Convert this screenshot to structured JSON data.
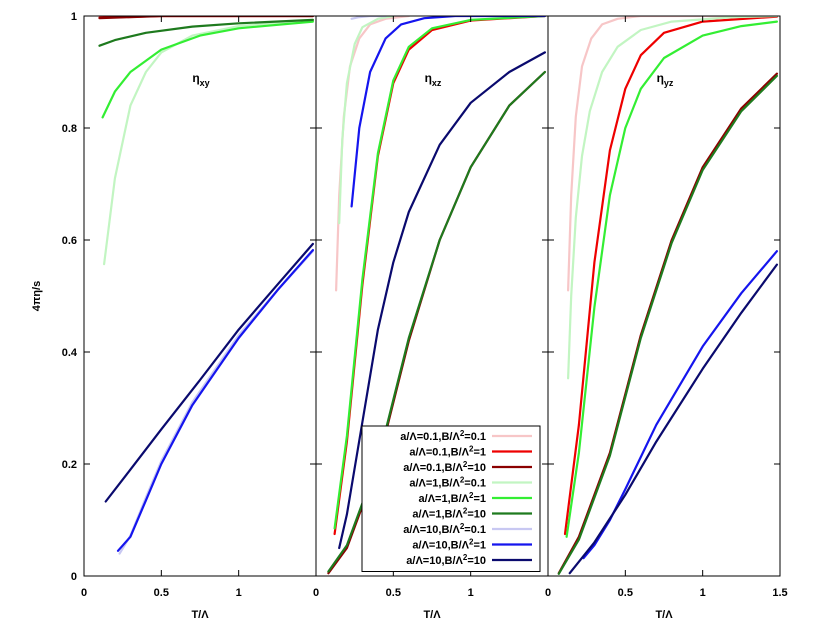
{
  "chart_data": {
    "type": "line",
    "ylabel": "4πη/s",
    "xlabel": "T/Λ",
    "ylim": [
      0,
      1
    ],
    "xlim": [
      0,
      1.5
    ],
    "y_ticks": [
      0,
      0.2,
      0.4,
      0.6,
      0.8,
      1
    ],
    "y_tick_labels": [
      "0",
      "0.2",
      "0.4",
      "0.6",
      "0.8",
      "1"
    ],
    "x_ticks": [
      0,
      0.5,
      1
    ],
    "x_tick_labels": [
      "0",
      "0.5",
      "1"
    ],
    "x_ticks_last": [
      0,
      0.5,
      1,
      1.5
    ],
    "x_tick_labels_last": [
      "0",
      "0.5",
      "1",
      "1.5"
    ],
    "legend_placement": "bottom-center",
    "series_styles": [
      {
        "key": "s1",
        "label_parts": [
          "a/Λ=0.1,B/Λ",
          "2",
          "=0.1"
        ],
        "color": "#f7c6c7"
      },
      {
        "key": "s2",
        "label_parts": [
          "a/Λ=0.1,B/Λ",
          "2",
          "=1"
        ],
        "color": "#ee0000"
      },
      {
        "key": "s3",
        "label_parts": [
          "a/Λ=0.1,B/Λ",
          "2",
          "=10"
        ],
        "color": "#8b0000"
      },
      {
        "key": "s4",
        "label_parts": [
          "a/Λ=1,B/Λ",
          "2",
          "=0.1"
        ],
        "color": "#c2f5c2"
      },
      {
        "key": "s5",
        "label_parts": [
          "a/Λ=1,B/Λ",
          "2",
          "=1"
        ],
        "color": "#33ee33"
      },
      {
        "key": "s6",
        "label_parts": [
          "a/Λ=1,B/Λ",
          "2",
          "=10"
        ],
        "color": "#1e7a1e"
      },
      {
        "key": "s7",
        "label_parts": [
          "a/Λ=10,B/Λ",
          "2",
          "=0.1"
        ],
        "color": "#c8c8f2"
      },
      {
        "key": "s8",
        "label_parts": [
          "a/Λ=10,B/Λ",
          "2",
          "=1"
        ],
        "color": "#1515ee"
      },
      {
        "key": "s9",
        "label_parts": [
          "a/Λ=10,B/Λ",
          "2",
          "=10"
        ],
        "color": "#0a0a6e"
      }
    ],
    "panels": [
      {
        "label_main": "η",
        "label_sub": "xy",
        "series": [
          {
            "key": "s1",
            "points": [
              [
                0.1,
                0.998
              ],
              [
                0.5,
                1
              ],
              [
                1,
                1
              ],
              [
                1.48,
                1
              ]
            ]
          },
          {
            "key": "s2",
            "points": [
              [
                0.1,
                0.997
              ],
              [
                0.5,
                1
              ],
              [
                1,
                1
              ],
              [
                1.48,
                1
              ]
            ]
          },
          {
            "key": "s3",
            "points": [
              [
                0.1,
                0.996
              ],
              [
                0.5,
                1
              ],
              [
                1,
                1
              ],
              [
                1.48,
                1
              ]
            ]
          },
          {
            "key": "s4",
            "points": [
              [
                0.13,
                0.557
              ],
              [
                0.2,
                0.71
              ],
              [
                0.3,
                0.84
              ],
              [
                0.4,
                0.9
              ],
              [
                0.5,
                0.935
              ],
              [
                0.7,
                0.965
              ],
              [
                1,
                0.982
              ],
              [
                1.48,
                0.993
              ]
            ]
          },
          {
            "key": "s5",
            "points": [
              [
                0.12,
                0.819
              ],
              [
                0.2,
                0.865
              ],
              [
                0.3,
                0.9
              ],
              [
                0.5,
                0.94
              ],
              [
                0.75,
                0.965
              ],
              [
                1,
                0.978
              ],
              [
                1.48,
                0.99
              ]
            ]
          },
          {
            "key": "s6",
            "points": [
              [
                0.1,
                0.947
              ],
              [
                0.2,
                0.957
              ],
              [
                0.4,
                0.97
              ],
              [
                0.7,
                0.981
              ],
              [
                1,
                0.987
              ],
              [
                1.48,
                0.993
              ]
            ]
          },
          {
            "key": "s7",
            "points": [
              [
                0.23,
                0.04
              ],
              [
                0.3,
                0.072
              ],
              [
                0.4,
                0.14
              ],
              [
                0.5,
                0.205
              ],
              [
                0.7,
                0.31
              ],
              [
                1,
                0.43
              ],
              [
                1.25,
                0.51
              ],
              [
                1.48,
                0.58
              ]
            ]
          },
          {
            "key": "s8",
            "points": [
              [
                0.22,
                0.045
              ],
              [
                0.3,
                0.07
              ],
              [
                0.4,
                0.135
              ],
              [
                0.5,
                0.2
              ],
              [
                0.7,
                0.305
              ],
              [
                1,
                0.425
              ],
              [
                1.25,
                0.51
              ],
              [
                1.48,
                0.582
              ]
            ]
          },
          {
            "key": "s9",
            "points": [
              [
                0.14,
                0.133
              ],
              [
                0.3,
                0.19
              ],
              [
                0.5,
                0.262
              ],
              [
                0.75,
                0.35
              ],
              [
                1,
                0.44
              ],
              [
                1.25,
                0.52
              ],
              [
                1.48,
                0.593
              ]
            ]
          }
        ]
      },
      {
        "label_main": "η",
        "label_sub": "xz",
        "series": [
          {
            "key": "s1",
            "points": [
              [
                0.13,
                0.51
              ],
              [
                0.15,
                0.68
              ],
              [
                0.18,
                0.82
              ],
              [
                0.22,
                0.91
              ],
              [
                0.28,
                0.96
              ],
              [
                0.35,
                0.985
              ],
              [
                0.45,
                0.995
              ],
              [
                0.6,
                1
              ]
            ]
          },
          {
            "key": "s2",
            "points": [
              [
                0.12,
                0.075
              ],
              [
                0.2,
                0.24
              ],
              [
                0.3,
                0.52
              ],
              [
                0.4,
                0.75
              ],
              [
                0.5,
                0.88
              ],
              [
                0.6,
                0.94
              ],
              [
                0.75,
                0.975
              ],
              [
                1,
                0.992
              ],
              [
                1.48,
                1
              ]
            ]
          },
          {
            "key": "s3",
            "points": [
              [
                0.08,
                0.005
              ],
              [
                0.2,
                0.05
              ],
              [
                0.4,
                0.2
              ],
              [
                0.6,
                0.42
              ],
              [
                0.8,
                0.6
              ],
              [
                1,
                0.73
              ],
              [
                1.25,
                0.84
              ],
              [
                1.48,
                0.9
              ]
            ]
          },
          {
            "key": "s4",
            "points": [
              [
                0.15,
                0.63
              ],
              [
                0.17,
                0.78
              ],
              [
                0.2,
                0.88
              ],
              [
                0.25,
                0.95
              ],
              [
                0.3,
                0.98
              ],
              [
                0.4,
                0.995
              ],
              [
                0.5,
                1
              ]
            ]
          },
          {
            "key": "s5",
            "points": [
              [
                0.12,
                0.085
              ],
              [
                0.2,
                0.25
              ],
              [
                0.3,
                0.53
              ],
              [
                0.4,
                0.755
              ],
              [
                0.5,
                0.885
              ],
              [
                0.6,
                0.945
              ],
              [
                0.75,
                0.978
              ],
              [
                1,
                0.993
              ],
              [
                1.48,
                1
              ]
            ]
          },
          {
            "key": "s6",
            "points": [
              [
                0.08,
                0.008
              ],
              [
                0.2,
                0.055
              ],
              [
                0.4,
                0.205
              ],
              [
                0.6,
                0.425
              ],
              [
                0.8,
                0.6
              ],
              [
                1,
                0.73
              ],
              [
                1.25,
                0.84
              ],
              [
                1.48,
                0.9
              ]
            ]
          },
          {
            "key": "s7",
            "points": [
              [
                0.23,
                0.995
              ],
              [
                0.28,
                0.998
              ],
              [
                0.35,
                1
              ],
              [
                0.45,
                1
              ]
            ]
          },
          {
            "key": "s8",
            "points": [
              [
                0.23,
                0.66
              ],
              [
                0.28,
                0.8
              ],
              [
                0.35,
                0.9
              ],
              [
                0.45,
                0.96
              ],
              [
                0.55,
                0.985
              ],
              [
                0.7,
                0.996
              ],
              [
                0.9,
                1
              ],
              [
                1.48,
                1
              ]
            ]
          },
          {
            "key": "s9",
            "points": [
              [
                0.15,
                0.05
              ],
              [
                0.2,
                0.11
              ],
              [
                0.3,
                0.275
              ],
              [
                0.4,
                0.44
              ],
              [
                0.5,
                0.56
              ],
              [
                0.6,
                0.65
              ],
              [
                0.8,
                0.77
              ],
              [
                1,
                0.845
              ],
              [
                1.25,
                0.9
              ],
              [
                1.48,
                0.935
              ]
            ]
          }
        ]
      },
      {
        "label_main": "η",
        "label_sub": "yz",
        "series": [
          {
            "key": "s1",
            "points": [
              [
                0.13,
                0.51
              ],
              [
                0.15,
                0.68
              ],
              [
                0.18,
                0.82
              ],
              [
                0.22,
                0.91
              ],
              [
                0.28,
                0.96
              ],
              [
                0.35,
                0.985
              ],
              [
                0.45,
                0.995
              ],
              [
                0.6,
                1
              ],
              [
                1,
                1
              ],
              [
                1.48,
                1
              ]
            ]
          },
          {
            "key": "s2",
            "points": [
              [
                0.11,
                0.075
              ],
              [
                0.2,
                0.27
              ],
              [
                0.3,
                0.56
              ],
              [
                0.4,
                0.76
              ],
              [
                0.5,
                0.87
              ],
              [
                0.6,
                0.93
              ],
              [
                0.75,
                0.97
              ],
              [
                1,
                0.99
              ],
              [
                1.48,
                0.999
              ]
            ]
          },
          {
            "key": "s3",
            "points": [
              [
                0.07,
                0.005
              ],
              [
                0.2,
                0.07
              ],
              [
                0.4,
                0.22
              ],
              [
                0.6,
                0.43
              ],
              [
                0.8,
                0.6
              ],
              [
                1,
                0.73
              ],
              [
                1.25,
                0.835
              ],
              [
                1.48,
                0.897
              ]
            ]
          },
          {
            "key": "s4",
            "points": [
              [
                0.13,
                0.353
              ],
              [
                0.15,
                0.5
              ],
              [
                0.18,
                0.64
              ],
              [
                0.22,
                0.75
              ],
              [
                0.27,
                0.83
              ],
              [
                0.35,
                0.9
              ],
              [
                0.45,
                0.945
              ],
              [
                0.6,
                0.975
              ],
              [
                0.8,
                0.99
              ],
              [
                1.2,
                0.998
              ],
              [
                1.48,
                1
              ]
            ]
          },
          {
            "key": "s5",
            "points": [
              [
                0.12,
                0.07
              ],
              [
                0.2,
                0.22
              ],
              [
                0.3,
                0.48
              ],
              [
                0.4,
                0.68
              ],
              [
                0.5,
                0.8
              ],
              [
                0.6,
                0.87
              ],
              [
                0.75,
                0.925
              ],
              [
                1,
                0.965
              ],
              [
                1.25,
                0.982
              ],
              [
                1.48,
                0.99
              ]
            ]
          },
          {
            "key": "s6",
            "points": [
              [
                0.07,
                0.004
              ],
              [
                0.2,
                0.065
              ],
              [
                0.4,
                0.215
              ],
              [
                0.6,
                0.425
              ],
              [
                0.8,
                0.595
              ],
              [
                1,
                0.725
              ],
              [
                1.25,
                0.83
              ],
              [
                1.48,
                0.893
              ]
            ]
          },
          {
            "key": "s8",
            "points": [
              [
                0.23,
                0.032
              ],
              [
                0.3,
                0.055
              ],
              [
                0.4,
                0.1
              ],
              [
                0.5,
                0.155
              ],
              [
                0.7,
                0.27
              ],
              [
                1,
                0.41
              ],
              [
                1.25,
                0.505
              ],
              [
                1.48,
                0.58
              ]
            ]
          },
          {
            "key": "s9",
            "points": [
              [
                0.14,
                0.005
              ],
              [
                0.3,
                0.06
              ],
              [
                0.5,
                0.145
              ],
              [
                0.7,
                0.24
              ],
              [
                1,
                0.37
              ],
              [
                1.25,
                0.47
              ],
              [
                1.48,
                0.556
              ]
            ]
          }
        ]
      }
    ]
  }
}
